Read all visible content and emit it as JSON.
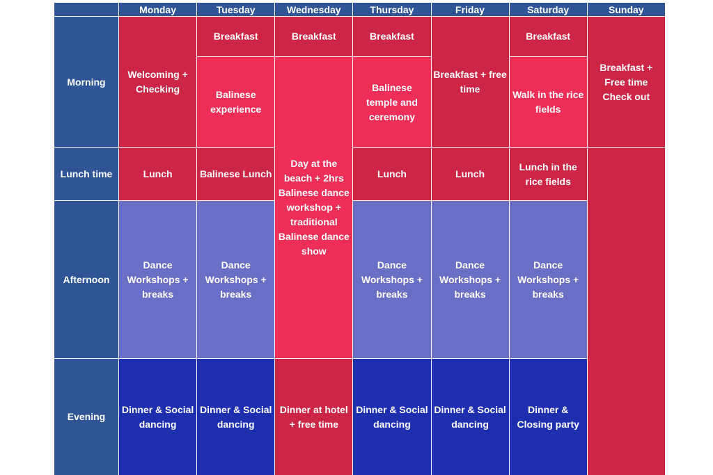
{
  "days": [
    "Monday",
    "Tuesday",
    "Wednesday",
    "Thursday",
    "Friday",
    "Saturday",
    "Sunday"
  ],
  "rows": [
    "Morning",
    "Lunch time",
    "Afternoon",
    "Evening"
  ],
  "cells": {
    "mon_morning": "Welcoming + Checking",
    "tue_breakfast": "Breakfast",
    "tue_morning": "Balinese experience",
    "wed_breakfast": "Breakfast",
    "wed_main": "Day at the beach + 2hrs Balinese dance workshop + traditional Balinese dance show",
    "thu_breakfast": "Breakfast",
    "thu_morning": "Balinese temple and ceremony",
    "fri_morning": "Breakfast + free time",
    "sat_breakfast": "Breakfast",
    "sat_morning": "Walk in the rice fields",
    "sun_morning": "Breakfast + Free time   Check out",
    "mon_lunch": "Lunch",
    "tue_lunch": "Balinese Lunch",
    "thu_lunch": "Lunch",
    "fri_lunch": "Lunch",
    "sat_lunch": "Lunch in the rice fields",
    "mon_afternoon": "Dance Workshops + breaks",
    "tue_afternoon": "Dance Workshops + breaks",
    "thu_afternoon": "Dance Workshops + breaks",
    "fri_afternoon": "Dance Workshops + breaks",
    "sat_afternoon": "Dance Workshops + breaks",
    "mon_evening": "Dinner & Social dancing",
    "tue_evening": "Dinner & Social dancing",
    "wed_evening": "Dinner at hotel + free time",
    "thu_evening": "Dinner & Social dancing",
    "fri_evening": "Dinner & Social dancing",
    "sat_evening": "Dinner & Closing party"
  },
  "colors": {
    "header": "#2f5597",
    "red": "#cc2546",
    "pink": "#ef2e58",
    "lavender": "#6a6fc6",
    "navy": "#1d2eae"
  }
}
